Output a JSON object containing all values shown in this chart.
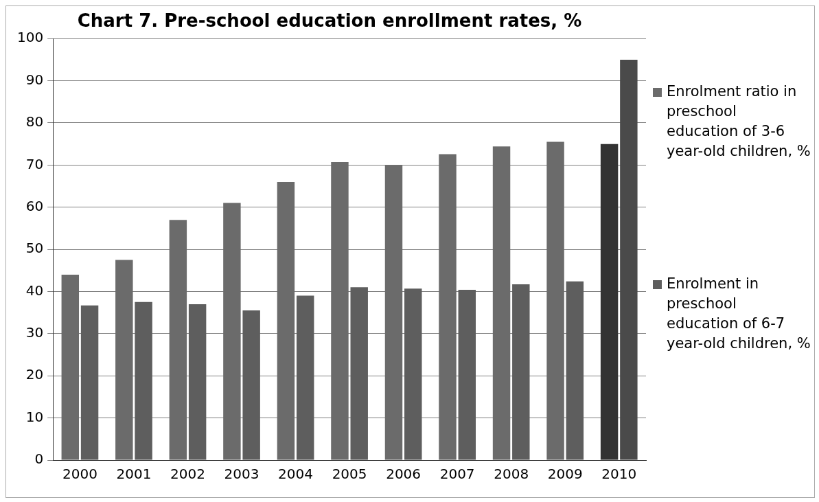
{
  "chart_data": {
    "type": "bar",
    "title": "Chart 7. Pre-school education enrollment rates, %",
    "categories": [
      "2000",
      "2001",
      "2002",
      "2003",
      "2004",
      "2005",
      "2006",
      "2007",
      "2008",
      "2009",
      "2010"
    ],
    "series": [
      {
        "name": "Enrolment ratio in preschool education of 3-6 year-old children, %",
        "color": "#6b6b6b",
        "colors": [
          "#6b6b6b",
          "#6b6b6b",
          "#6b6b6b",
          "#6b6b6b",
          "#6b6b6b",
          "#6b6b6b",
          "#6b6b6b",
          "#6b6b6b",
          "#6b6b6b",
          "#6b6b6b",
          "#333333"
        ],
        "values": [
          44,
          47.5,
          57,
          61,
          66,
          70.7,
          70,
          72.6,
          74.4,
          75.5,
          75
        ]
      },
      {
        "name": "Enrolment in preschool education of 6-7 year-old children, %",
        "color": "#5e5e5e",
        "colors": [
          "#5e5e5e",
          "#5e5e5e",
          "#5e5e5e",
          "#5e5e5e",
          "#5e5e5e",
          "#5e5e5e",
          "#5e5e5e",
          "#5e5e5e",
          "#5e5e5e",
          "#5e5e5e",
          "#4a4a4a"
        ],
        "values": [
          36.7,
          37.5,
          37,
          35.5,
          39,
          41,
          40.7,
          40.4,
          41.7,
          42.4,
          95
        ]
      }
    ],
    "ylim": [
      0,
      100
    ],
    "yticks": [
      0,
      10,
      20,
      30,
      40,
      50,
      60,
      70,
      80,
      90,
      100
    ],
    "grid": "y",
    "legend": "right"
  }
}
